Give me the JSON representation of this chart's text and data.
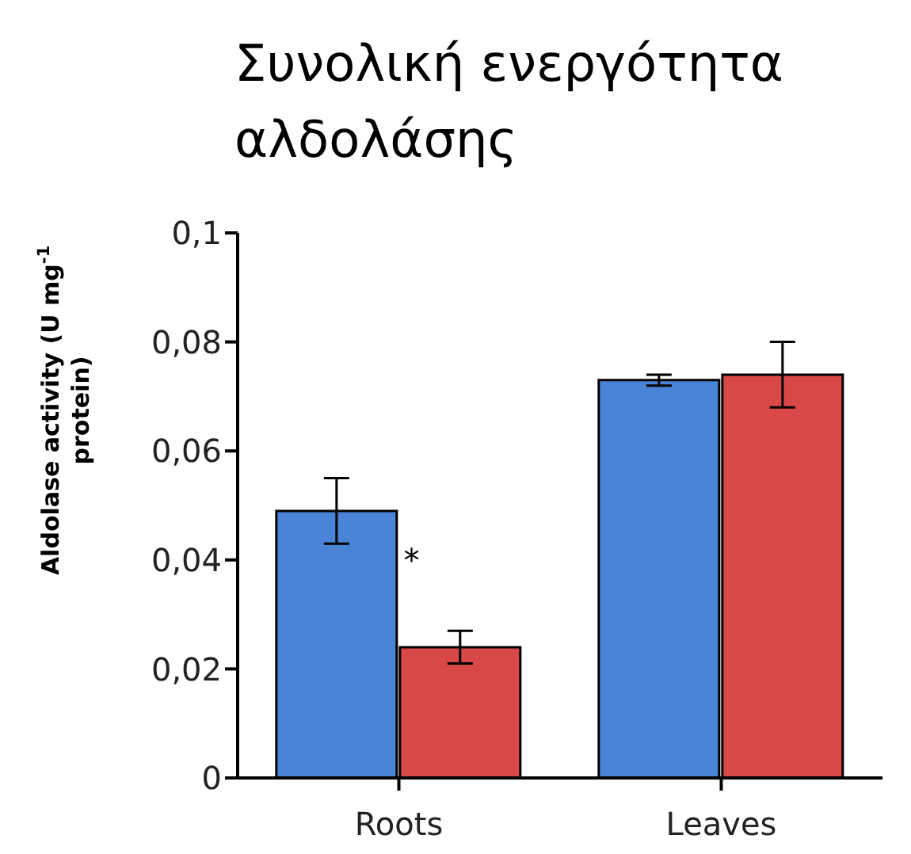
{
  "chart_data": {
    "type": "bar",
    "title": "Συνολική ενεργότητα αλδολάσης",
    "ylabel": "Aldolase activity (U mg$^{-1}$ protein)",
    "categories": [
      "Roots",
      "Leaves"
    ],
    "series": [
      {
        "color": "#4a84d6",
        "values": [
          0.049,
          0.073
        ],
        "errors": [
          0.006,
          0.001
        ]
      },
      {
        "color": "#d94848",
        "values": [
          0.024,
          0.074
        ],
        "errors": [
          0.003,
          0.006
        ]
      }
    ],
    "ylim": [
      0,
      0.1
    ],
    "yticks": [
      {
        "value": 0,
        "label": "0"
      },
      {
        "value": 0.02,
        "label": "0,02"
      },
      {
        "value": 0.04,
        "label": "0,04"
      },
      {
        "value": 0.06,
        "label": "0,06"
      },
      {
        "value": 0.08,
        "label": "0,08"
      },
      {
        "value": 0.1,
        "label": "0,1"
      }
    ],
    "annotations": [
      {
        "text": "*",
        "x": "Roots",
        "y": 0.04
      }
    ],
    "grid": false,
    "legend": false
  }
}
